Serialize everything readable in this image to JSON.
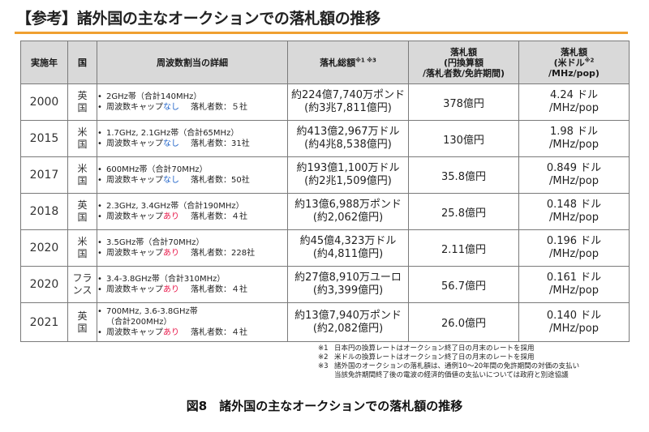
{
  "title": "【参考】諸外国の主なオークションでの落札額の推移",
  "table": {
    "headers": {
      "year": "実施年",
      "country": "国",
      "detail": "周波数割当の詳細",
      "total": "落札総額",
      "total_sup": "※1 ※3",
      "yen_l1": "落札額",
      "yen_l2": "(円換算額",
      "yen_l3": "/落札者数/免許期間)",
      "usd_l1": "落札額",
      "usd_l2a": "(米ドル",
      "usd_sup": "※2",
      "usd_l3": "/MHz/pop)"
    },
    "rows": [
      {
        "year": "2000",
        "country_1": "英",
        "country_2": "国",
        "freq": "2GHz帯（合計140MHz）",
        "cap_label": "周波数キャップ",
        "cap_value": "なし",
        "winners": "落札者数：５社",
        "total_1": "約224億7,740万ポンド",
        "total_2": "(約3兆7,811億円)",
        "yen": "378億円",
        "usd_1": "4.24 ドル",
        "usd_2": "/MHz/pop"
      },
      {
        "year": "2015",
        "country_1": "米",
        "country_2": "国",
        "freq": "1.7GHz, 2.1GHz帯（合計65MHz）",
        "cap_label": "周波数キャップ",
        "cap_value": "なし",
        "winners": "落札者数：31社",
        "total_1": "約413億2,967万ドル",
        "total_2": "(約4兆8,538億円)",
        "yen": "130億円",
        "usd_1": "1.98 ドル",
        "usd_2": "/MHz/pop"
      },
      {
        "year": "2017",
        "country_1": "米",
        "country_2": "国",
        "freq": "600MHz帯（合計70MHz）",
        "cap_label": "周波数キャップ",
        "cap_value": "なし",
        "winners": "落札者数：50社",
        "total_1": "約193億1,100万ドル",
        "total_2": "(約2兆1,509億円)",
        "yen": "35.8億円",
        "usd_1": "0.849 ドル",
        "usd_2": "/MHz/pop"
      },
      {
        "year": "2018",
        "country_1": "英",
        "country_2": "国",
        "freq": "2.3GHz, 3.4GHz帯（合計190MHz）",
        "cap_label": "周波数キャップ",
        "cap_value": "あり",
        "winners": "落札者数：４社",
        "total_1": "約13億6,988万ポンド",
        "total_2": "(約2,062億円)",
        "yen": "25.8億円",
        "usd_1": "0.148 ドル",
        "usd_2": "/MHz/pop"
      },
      {
        "year": "2020",
        "country_1": "米",
        "country_2": "国",
        "freq": "3.5GHz帯（合計70MHz）",
        "cap_label": "周波数キャップ",
        "cap_value": "あり",
        "winners": "落札者数：228社",
        "total_1": "約45億4,323万ドル",
        "total_2": "(約4,811億円)",
        "yen": "2.11億円",
        "usd_1": "0.196 ドル",
        "usd_2": "/MHz/pop"
      },
      {
        "year": "2020",
        "country_1": "フラ",
        "country_2": "ンス",
        "freq": "3.4-3.8GHz帯（合計310MHz）",
        "cap_label": "周波数キャップ",
        "cap_value": "あり",
        "winners": "落札者数：４社",
        "total_1": "約27億8,910万ユーロ",
        "total_2": "(約3,399億円)",
        "yen": "56.7億円",
        "usd_1": "0.161 ドル",
        "usd_2": "/MHz/pop"
      },
      {
        "year": "2021",
        "country_1": "英",
        "country_2": "国",
        "freq": "700MHz, 3.6-3.8GHz帯",
        "freq_cont": "（合計200MHz）",
        "cap_label": "周波数キャップ",
        "cap_value": "あり",
        "winners": "落札者数：４社",
        "total_1": "約13億7,940万ポンド",
        "total_2": "(約2,082億円)",
        "yen": "26.0億円",
        "usd_1": "0.140 ドル",
        "usd_2": "/MHz/pop"
      }
    ]
  },
  "notes": [
    {
      "mark": "※1",
      "text": "日本円の換算レートはオークション終了日の月末のレートを採用"
    },
    {
      "mark": "※2",
      "text": "米ドルの換算レートはオークション終了日の月末のレートを採用"
    },
    {
      "mark": "※3",
      "text": "諸外国のオークションの落札額は、通例10～20年間の免許期間の対価の支払い",
      "text_2": "当該免許期間終了後の電波の経済的価値の支払いについては政府と別途協議"
    }
  ],
  "caption": "図8　諸外国の主なオークションでの落札額の推移",
  "colors": {
    "accent_rule": "#f0a030",
    "cap_none": "#1e62c8",
    "cap_yes": "#e8184a",
    "header_bg": "#d9d9d9"
  }
}
